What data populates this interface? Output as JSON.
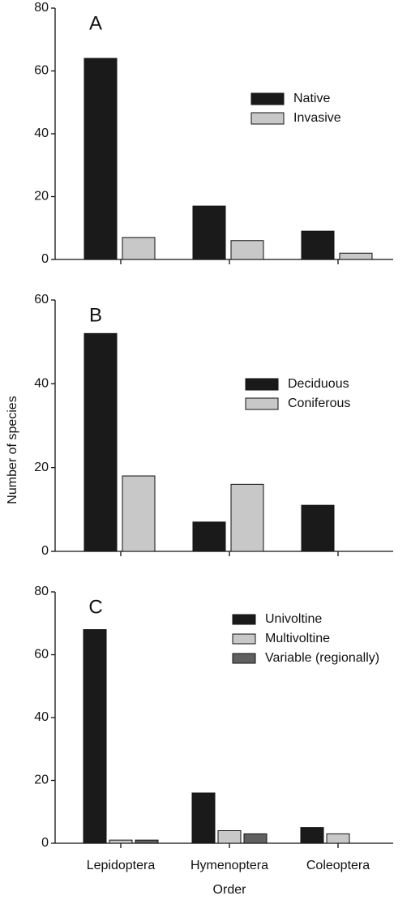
{
  "chart_data": [
    {
      "type": "bar",
      "title": "A",
      "series": [
        {
          "name": "Native",
          "color": "#1a1a1a",
          "values": [
            64,
            17,
            9
          ]
        },
        {
          "name": "Invasive",
          "color": "#c8c8c8",
          "values": [
            7,
            6,
            2
          ]
        }
      ],
      "ylim": [
        0,
        80
      ],
      "yticks": [
        0,
        20,
        40,
        60,
        80
      ]
    },
    {
      "type": "bar",
      "title": "B",
      "ylabel": "Number of species",
      "series": [
        {
          "name": "Deciduous",
          "color": "#1a1a1a",
          "values": [
            52,
            7,
            11
          ]
        },
        {
          "name": "Coniferous",
          "color": "#c8c8c8",
          "values": [
            18,
            16,
            0
          ]
        }
      ],
      "ylim": [
        0,
        60
      ],
      "yticks": [
        0,
        20,
        40,
        60
      ]
    },
    {
      "type": "bar",
      "title": "C",
      "xlabel": "Order",
      "categories": [
        "Lepidoptera",
        "Hymenoptera",
        "Coleoptera"
      ],
      "series": [
        {
          "name": "Univoltine",
          "color": "#1a1a1a",
          "values": [
            68,
            16,
            5
          ]
        },
        {
          "name": "Multivoltine",
          "color": "#c8c8c8",
          "values": [
            1,
            4,
            3
          ]
        },
        {
          "name": "Variable (regionally)",
          "color": "#606060",
          "values": [
            1,
            3,
            0
          ]
        }
      ],
      "ylim": [
        0,
        80
      ],
      "yticks": [
        0,
        20,
        40,
        60,
        80
      ]
    }
  ]
}
